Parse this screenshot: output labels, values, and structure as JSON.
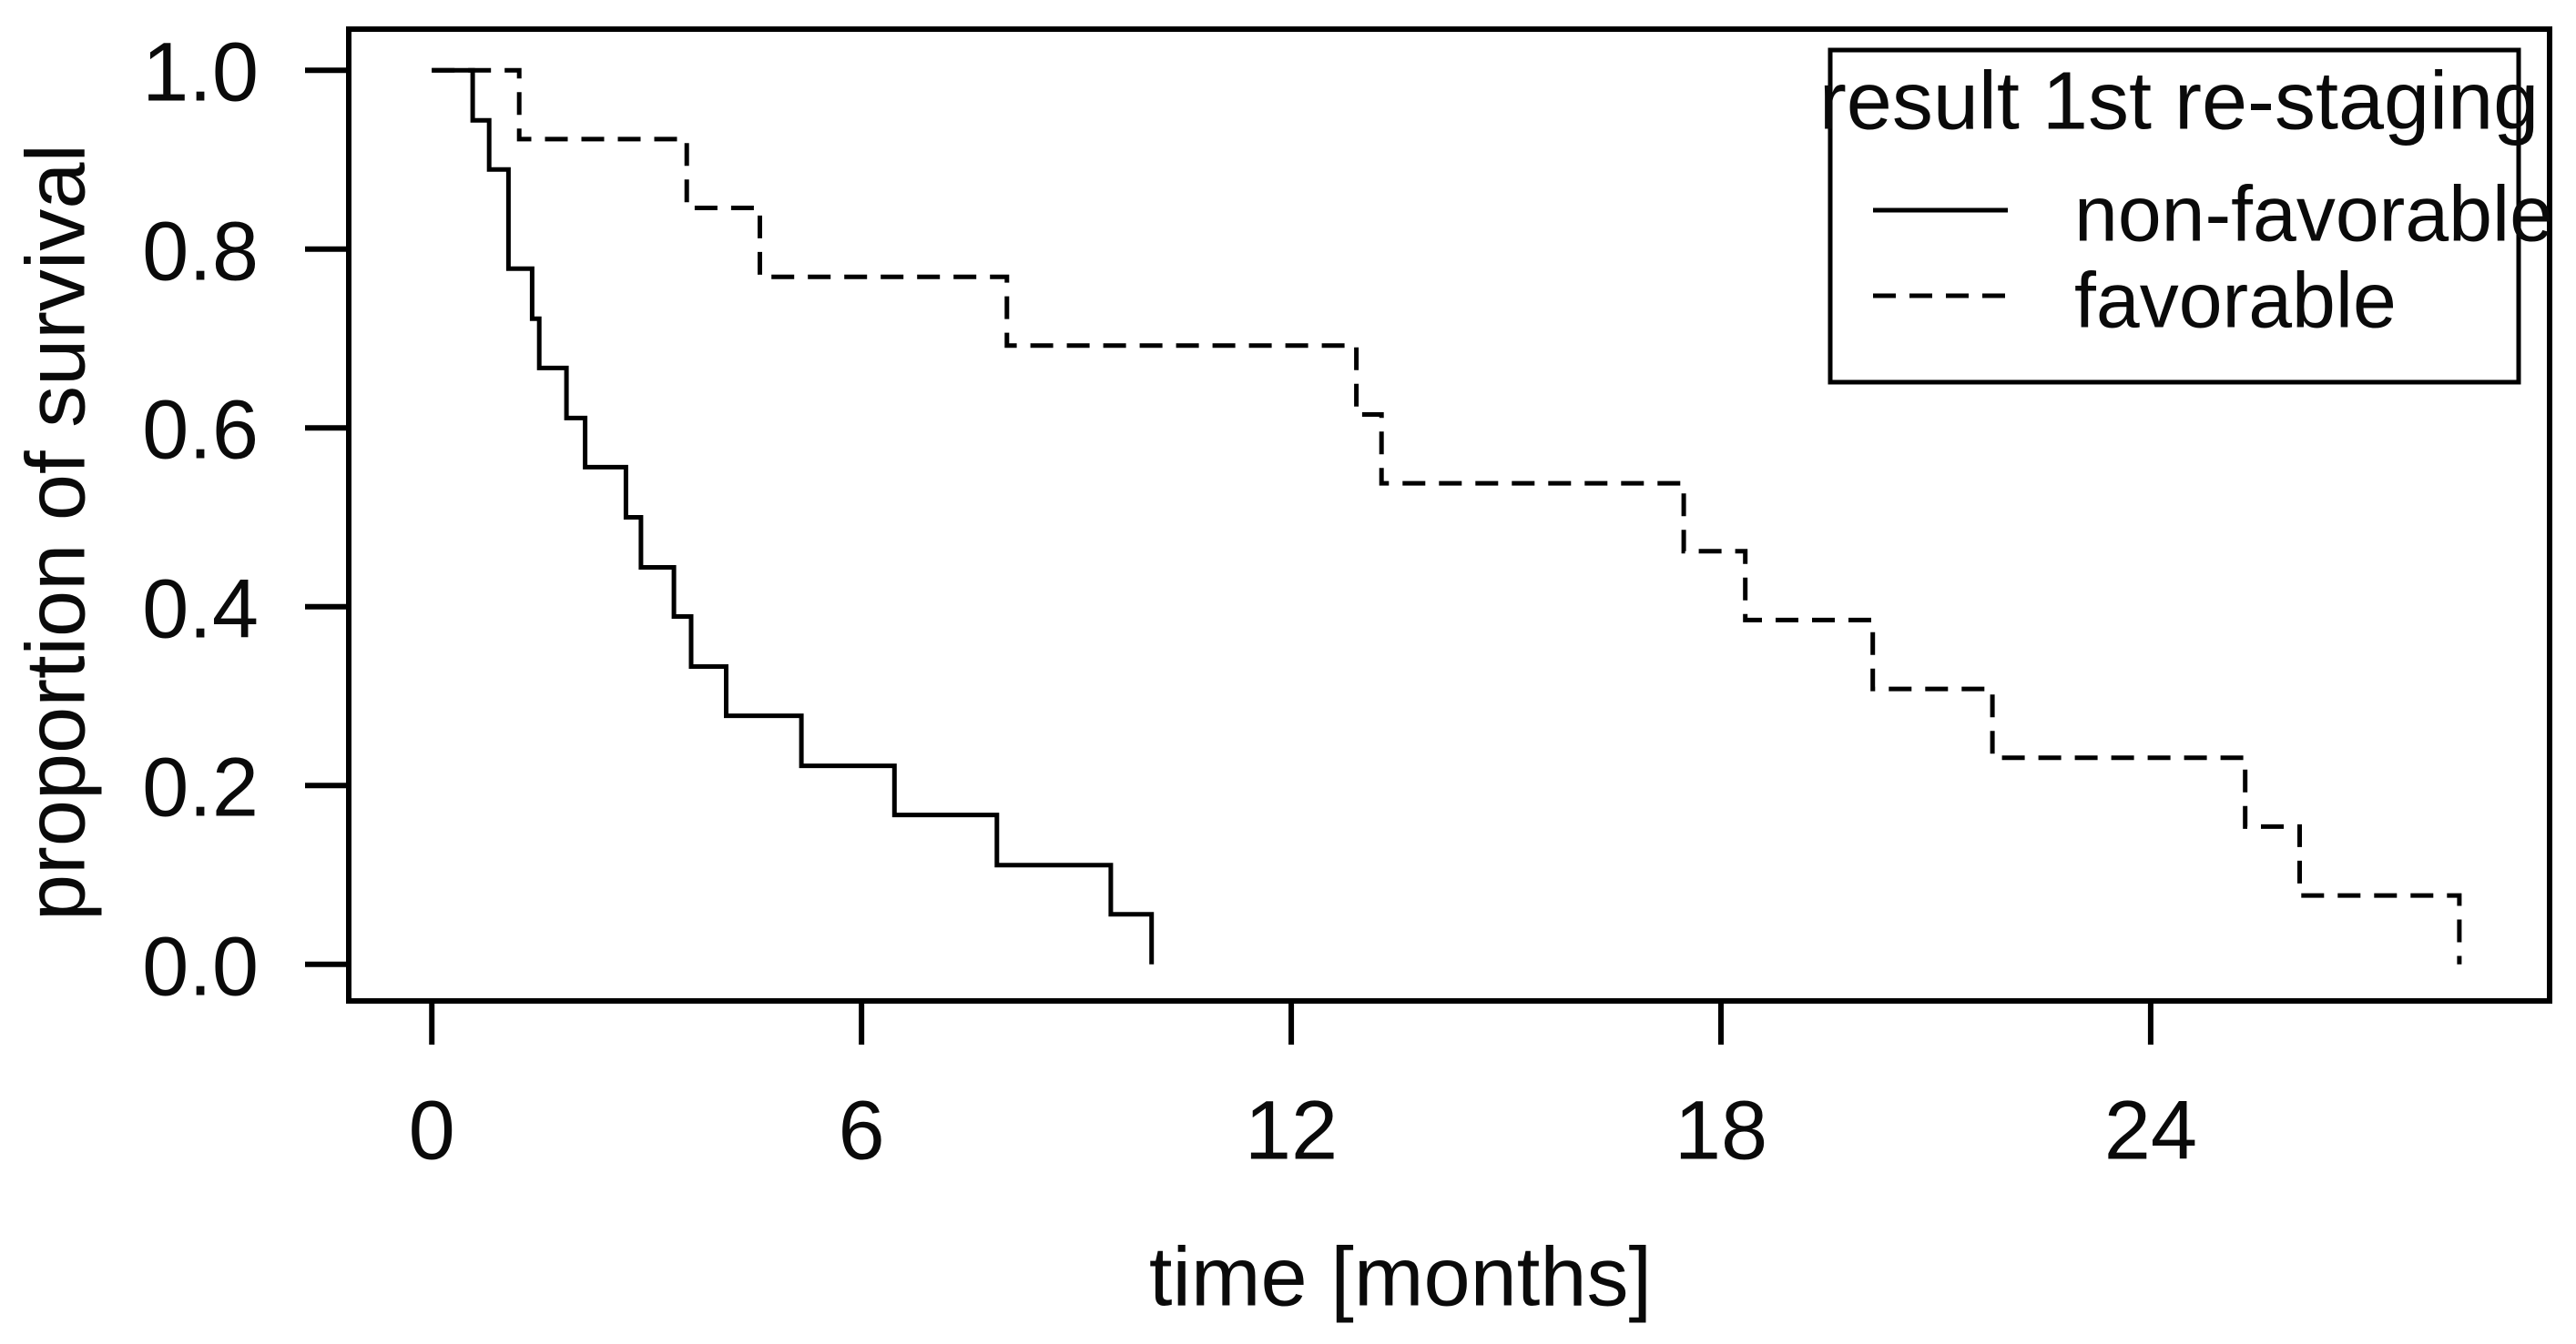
{
  "chart_data": {
    "type": "line",
    "subtype": "kaplan-meier-step-curves",
    "title": "",
    "xlabel": "time [months]",
    "ylabel": "proportion of survival",
    "xlim": [
      -1.16,
      29.57
    ],
    "ylim": [
      -0.041,
      1.046
    ],
    "x_ticks": [
      0,
      6,
      12,
      18,
      24
    ],
    "x_tick_labels": [
      "0",
      "6",
      "12",
      "18",
      "24"
    ],
    "y_ticks": [
      0.0,
      0.2,
      0.4,
      0.6,
      0.8,
      1.0
    ],
    "y_tick_labels": [
      "0.0",
      "0.2",
      "0.4",
      "0.6",
      "0.8",
      "1.0"
    ],
    "grid": false,
    "line_color": "#000000",
    "legend": {
      "title": "result 1st re-staging",
      "position": "top-right",
      "entries": [
        {
          "label": "non-favorable",
          "line_style": "solid"
        },
        {
          "label": "favorable",
          "line_style": "dashed"
        }
      ]
    },
    "series": [
      {
        "name": "non-favorable",
        "line_style": "solid",
        "points": [
          [
            0,
            1.0
          ],
          [
            0.57,
            0.944
          ],
          [
            0.8,
            0.889
          ],
          [
            1.07,
            0.778
          ],
          [
            1.4,
            0.722
          ],
          [
            1.5,
            0.667
          ],
          [
            1.88,
            0.611
          ],
          [
            2.14,
            0.556
          ],
          [
            2.71,
            0.5
          ],
          [
            2.92,
            0.444
          ],
          [
            3.38,
            0.389
          ],
          [
            3.62,
            0.333
          ],
          [
            4.11,
            0.278
          ],
          [
            5.16,
            0.222
          ],
          [
            6.46,
            0.167
          ],
          [
            7.89,
            0.111
          ],
          [
            9.48,
            0.056
          ],
          [
            10.05,
            0.0
          ]
        ]
      },
      {
        "name": "favorable",
        "line_style": "dashed",
        "points": [
          [
            0,
            1.0
          ],
          [
            1.22,
            0.923
          ],
          [
            3.56,
            0.846
          ],
          [
            4.58,
            0.769
          ],
          [
            8.03,
            0.692
          ],
          [
            12.91,
            0.615
          ],
          [
            13.26,
            0.538
          ],
          [
            17.48,
            0.462
          ],
          [
            18.34,
            0.385
          ],
          [
            20.12,
            0.308
          ],
          [
            21.79,
            0.231
          ],
          [
            25.32,
            0.154
          ],
          [
            26.08,
            0.077
          ],
          [
            28.31,
            0.0
          ]
        ]
      }
    ]
  }
}
